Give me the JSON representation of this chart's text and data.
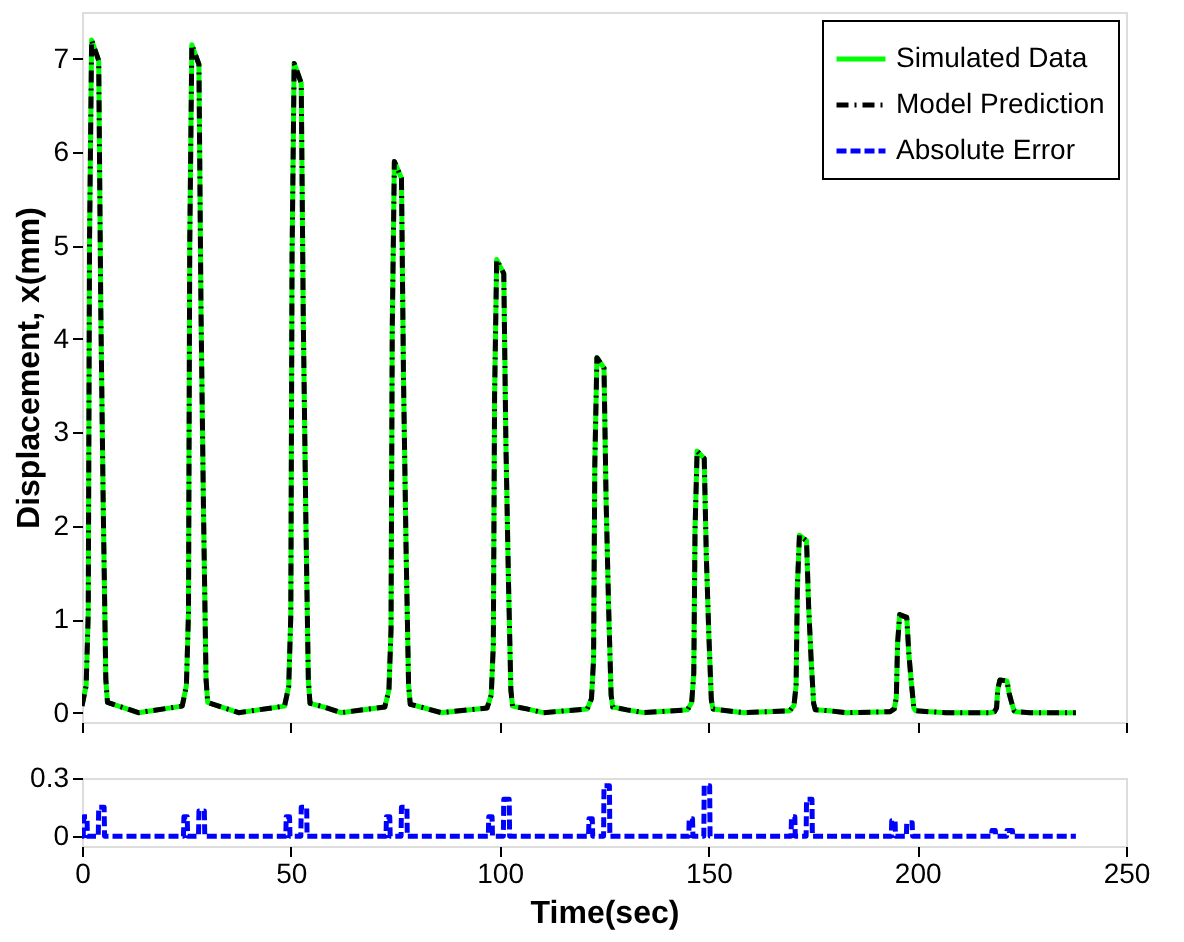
{
  "chart_data": [
    {
      "type": "line",
      "ylabel": "Displacement, x(mm)",
      "xlim": [
        0,
        250
      ],
      "xticks": [
        0,
        50,
        100,
        150,
        200,
        250
      ],
      "ylim": [
        -0.1,
        7.5
      ],
      "yticks": [
        0,
        1,
        2,
        3,
        4,
        5,
        6,
        7
      ],
      "tick_labels": "y",
      "legend": "top right",
      "x": [
        0,
        1,
        1.5,
        1.8,
        2.3,
        4,
        4.5,
        5.1,
        5.7,
        6.1,
        9.5,
        13.5,
        24,
        25,
        25.5,
        25.8,
        26.3,
        28,
        28.5,
        29.1,
        29.7,
        30.1,
        33.5,
        37.5,
        48.5,
        49.5,
        50,
        50.3,
        50.8,
        52.5,
        53,
        53.6,
        54.2,
        54.6,
        58,
        62,
        72.5,
        73.5,
        74,
        74.3,
        74.8,
        76.5,
        77,
        77.6,
        78.2,
        78.6,
        82,
        86,
        97,
        98,
        98.5,
        98.8,
        99.3,
        101,
        101.5,
        102.1,
        102.7,
        103.1,
        106.5,
        110.5,
        121,
        122,
        122.5,
        122.8,
        123.3,
        125,
        125.5,
        126.1,
        126.7,
        127.1,
        130.5,
        134.5,
        145,
        146,
        146.5,
        146.8,
        147.3,
        149,
        149.5,
        150.1,
        150.7,
        151.1,
        154.5,
        158.5,
        169.5,
        170.5,
        171,
        171.3,
        171.8,
        173.5,
        174,
        174.6,
        175.2,
        175.6,
        179,
        183,
        193.5,
        194.5,
        195,
        195.3,
        195.8,
        197.5,
        198,
        198.6,
        199.2,
        199.6,
        203,
        207,
        217.5,
        218.5,
        219,
        219.3,
        219.8,
        221.5,
        222,
        222.6,
        223.2,
        223.6,
        227,
        231,
        238
      ],
      "series": [
        {
          "name": "Simulated Data",
          "color": "#00ff00",
          "line_style": "solid",
          "values": [
            0.07,
            0.29,
            1.08,
            5.04,
            7.2,
            6.98,
            4.32,
            2.16,
            0.36,
            0.11,
            0.06,
            0,
            0.07,
            0.29,
            1.07,
            5.01,
            7.15,
            6.94,
            4.29,
            2.15,
            0.36,
            0.11,
            0.06,
            0,
            0.07,
            0.28,
            1.04,
            4.87,
            6.95,
            6.74,
            4.17,
            2.09,
            0.35,
            0.1,
            0.06,
            0,
            0.06,
            0.24,
            0.89,
            4.13,
            5.9,
            5.72,
            3.54,
            1.77,
            0.3,
            0.09,
            0.05,
            0,
            0.05,
            0.19,
            0.73,
            3.4,
            4.85,
            4.7,
            2.91,
            1.46,
            0.24,
            0.07,
            0.04,
            0,
            0.04,
            0.15,
            0.57,
            2.66,
            3.8,
            3.69,
            2.28,
            1.14,
            0.19,
            0.06,
            0.03,
            0,
            0.03,
            0.11,
            0.42,
            1.96,
            2.8,
            2.72,
            1.68,
            0.84,
            0.14,
            0.04,
            0.02,
            0,
            0.02,
            0.08,
            0.29,
            1.33,
            1.9,
            1.84,
            1.14,
            0.57,
            0.1,
            0.03,
            0.02,
            0,
            0.01,
            0.04,
            0.16,
            0.74,
            1.05,
            1.02,
            0.63,
            0.32,
            0.05,
            0.02,
            0.01,
            0,
            0,
            0.01,
            0.05,
            0.25,
            0.35,
            0.34,
            0.21,
            0.11,
            0.02,
            0.01,
            0,
            0,
            0
          ]
        },
        {
          "name": "Model Prediction",
          "color": "#000000",
          "line_style": "dashdot",
          "values": [
            0.07,
            0.29,
            1.08,
            5.04,
            7.2,
            6.98,
            4.32,
            2.16,
            0.36,
            0.11,
            0.06,
            0,
            0.07,
            0.29,
            1.07,
            5.01,
            7.15,
            6.94,
            4.29,
            2.15,
            0.36,
            0.11,
            0.06,
            0,
            0.07,
            0.28,
            1.04,
            4.87,
            6.95,
            6.74,
            4.17,
            2.09,
            0.35,
            0.1,
            0.06,
            0,
            0.06,
            0.24,
            0.89,
            4.13,
            5.9,
            5.72,
            3.54,
            1.77,
            0.3,
            0.09,
            0.05,
            0,
            0.05,
            0.19,
            0.73,
            3.4,
            4.85,
            4.7,
            2.91,
            1.46,
            0.24,
            0.07,
            0.04,
            0,
            0.04,
            0.15,
            0.57,
            2.66,
            3.8,
            3.69,
            2.28,
            1.14,
            0.19,
            0.06,
            0.03,
            0,
            0.03,
            0.11,
            0.42,
            1.96,
            2.8,
            2.72,
            1.68,
            0.84,
            0.14,
            0.04,
            0.02,
            0,
            0.02,
            0.08,
            0.29,
            1.33,
            1.9,
            1.84,
            1.14,
            0.57,
            0.1,
            0.03,
            0.02,
            0,
            0.01,
            0.04,
            0.16,
            0.74,
            1.05,
            1.02,
            0.63,
            0.32,
            0.05,
            0.02,
            0.01,
            0,
            0,
            0.01,
            0.05,
            0.25,
            0.35,
            0.34,
            0.21,
            0.11,
            0.02,
            0.01,
            0,
            0,
            0
          ]
        }
      ]
    },
    {
      "type": "line",
      "xlabel": "Time(sec)",
      "xlim": [
        0,
        250
      ],
      "xticks": [
        0,
        50,
        100,
        150,
        200,
        250
      ],
      "ylim": [
        -0.05,
        0.3
      ],
      "yticks": [
        0,
        0.3
      ],
      "series": [
        {
          "name": "Absolute Error",
          "color": "#0000ff",
          "line_style": "dashed",
          "x": [
            0,
            0.3,
            0.4,
            1.2,
            1.3,
            3.9,
            4,
            5.3,
            5.4,
            24.3,
            24.4,
            25.2,
            25.3,
            27.9,
            28,
            29.3,
            29.4,
            48.8,
            48.9,
            49.7,
            49.8,
            52.4,
            52.5,
            53.8,
            53.9,
            72.8,
            72.9,
            73.7,
            73.8,
            76.4,
            76.5,
            77.8,
            77.9,
            97.3,
            97.4,
            98.2,
            98.3,
            100.9,
            101,
            102.3,
            102.4,
            121.3,
            121.4,
            122.2,
            122.3,
            124.9,
            125,
            126.3,
            126.4,
            145.3,
            145.4,
            146.2,
            146.3,
            148.9,
            149,
            150.3,
            150.4,
            169.8,
            169.9,
            170.7,
            170.8,
            173.4,
            173.5,
            174.8,
            174.9,
            193.8,
            193.9,
            194.7,
            194.8,
            197.4,
            197.5,
            198.8,
            198.9,
            217.8,
            217.9,
            218.7,
            218.8,
            221.4,
            221.5,
            222.8,
            222.9,
            238
          ],
          "values": [
            0,
            0,
            0.1,
            0.1,
            0,
            0,
            0.15,
            0.15,
            0,
            0,
            0.1,
            0.1,
            0,
            0,
            0.13,
            0.13,
            0,
            0,
            0.1,
            0.1,
            0,
            0,
            0.15,
            0.15,
            0,
            0,
            0.1,
            0.1,
            0,
            0,
            0.15,
            0.15,
            0,
            0,
            0.1,
            0.1,
            0,
            0,
            0.19,
            0.19,
            0,
            0,
            0.09,
            0.09,
            0,
            0,
            0.26,
            0.26,
            0,
            0,
            0.09,
            0.09,
            0,
            0,
            0.26,
            0.26,
            0,
            0,
            0.1,
            0.1,
            0,
            0,
            0.19,
            0.19,
            0,
            0,
            0.08,
            0.08,
            0,
            0,
            0.07,
            0.07,
            0,
            0,
            0.03,
            0.03,
            0,
            0,
            0.03,
            0.03,
            0,
            0
          ]
        }
      ]
    }
  ]
}
